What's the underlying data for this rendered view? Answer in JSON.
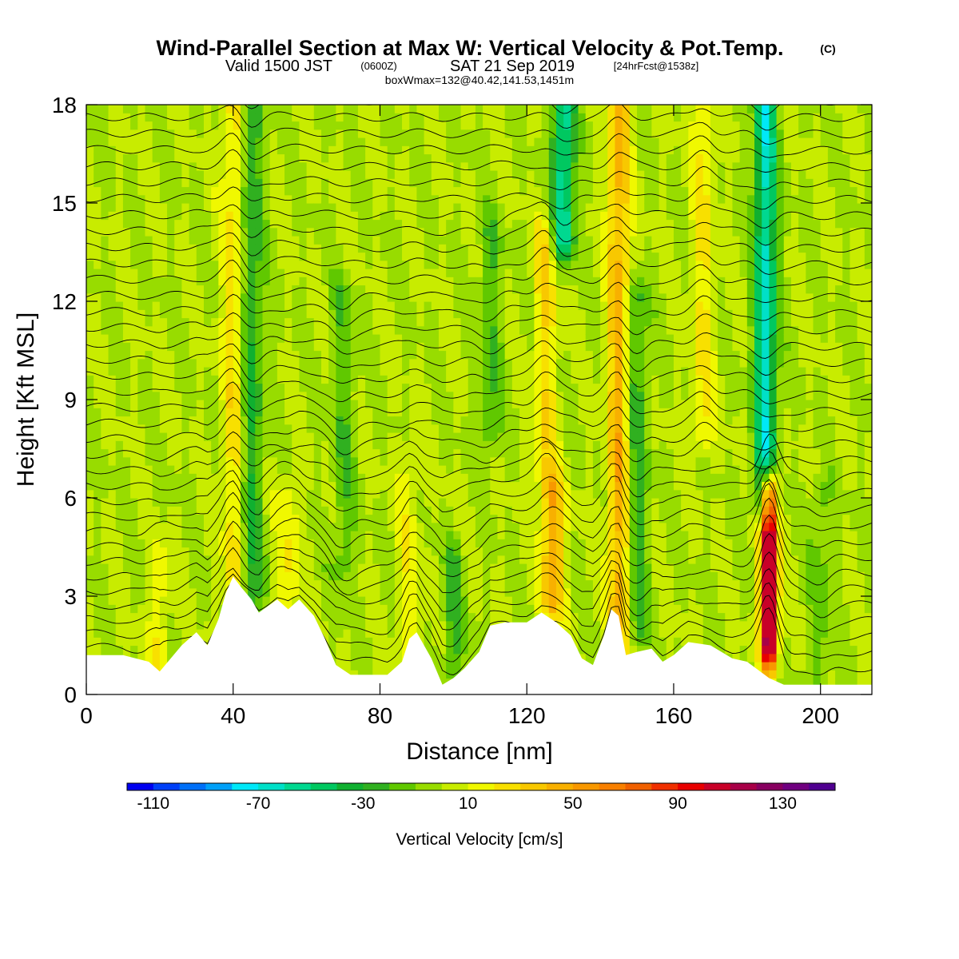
{
  "title": {
    "main": "Wind-Parallel Section at Max W: Vertical Velocity & Pot.Temp.",
    "copyright": "(C)",
    "valid_prefix": "Valid 1500 JST",
    "valid_utc": "(0600Z)",
    "valid_date": "SAT 21 Sep 2019",
    "forecast": "[24hrFcst@1538z]",
    "box_info": "boxWmax=132@40.42,141.53,1451m"
  },
  "colors": {
    "background": "#ffffff",
    "terrain": "#ffffff",
    "contour": "#000000"
  },
  "chart_data": {
    "type": "heatmap",
    "xlabel": "Distance [nm]",
    "ylabel": "Height [Kft MSL]",
    "xlim": [
      0,
      214
    ],
    "ylim": [
      0,
      18
    ],
    "x_ticks": [
      0,
      40,
      80,
      120,
      160,
      200
    ],
    "x_tick_labels": [
      "0",
      "40",
      "80",
      "120",
      "160",
      "200"
    ],
    "y_ticks": [
      0,
      3,
      6,
      9,
      12,
      15,
      18
    ],
    "y_tick_labels": [
      "0",
      "3",
      "6",
      "9",
      "12",
      "15",
      "18"
    ],
    "colorbar": {
      "title": "Vertical Velocity [cm/s]",
      "min": -120,
      "max": 150,
      "step": 10,
      "tick_values": [
        -110,
        -70,
        -30,
        10,
        50,
        90,
        130
      ],
      "tick_labels": [
        "-110",
        "-70",
        "-30",
        "10",
        "50",
        "90",
        "130"
      ],
      "colors": [
        "#0000f0",
        "#0040f8",
        "#0070f8",
        "#00a0f8",
        "#00e8f8",
        "#00e0c8",
        "#00d890",
        "#00c860",
        "#10b030",
        "#30b020",
        "#60c800",
        "#98dc00",
        "#c8ec00",
        "#f0f800",
        "#f8e000",
        "#f8c800",
        "#f8b000",
        "#f89800",
        "#f88000",
        "#f06000",
        "#f03000",
        "#e80000",
        "#c80028",
        "#a80048",
        "#880060",
        "#700080",
        "#500090"
      ]
    },
    "background_w": 0,
    "w_features": [
      {
        "x": 186,
        "z_bottom": 1.5,
        "z_top": 6.0,
        "w": 132
      },
      {
        "x": 185,
        "z_bottom": 6.0,
        "z_top": 18,
        "w": -65
      },
      {
        "x": 145,
        "z_bottom": 1.0,
        "z_top": 18,
        "w": 45
      },
      {
        "x": 130,
        "z_bottom": 14.0,
        "z_top": 18,
        "w": -60
      },
      {
        "x": 127,
        "z_bottom": 3.0,
        "z_top": 6.0,
        "w": 50
      },
      {
        "x": 40,
        "z_bottom": 3.5,
        "z_top": 18,
        "w": 25
      },
      {
        "x": 125,
        "z_bottom": 7.0,
        "z_top": 14.0,
        "w": 28
      },
      {
        "x": 168,
        "z_bottom": 8.0,
        "z_top": 18,
        "w": 22
      },
      {
        "x": 55,
        "z_bottom": 3.0,
        "z_top": 6.0,
        "w": 20
      },
      {
        "x": 45,
        "z_bottom": 3.0,
        "z_top": 18,
        "w": -30
      },
      {
        "x": 150,
        "z_bottom": 2.0,
        "z_top": 12.0,
        "w": -25
      },
      {
        "x": 110,
        "z_bottom": 8.0,
        "z_top": 14.0,
        "w": -20
      },
      {
        "x": 200,
        "z_bottom": 0.5,
        "z_top": 6.0,
        "w": -15
      },
      {
        "x": 88,
        "z_bottom": 1.0,
        "z_top": 7.0,
        "w": 16
      },
      {
        "x": 20,
        "z_bottom": 1.0,
        "z_top": 4.0,
        "w": 18
      },
      {
        "x": 70,
        "z_bottom": 4.0,
        "z_top": 12.0,
        "w": -18
      },
      {
        "x": 100,
        "z_bottom": 1.0,
        "z_top": 4.0,
        "w": -22
      }
    ],
    "terrain": [
      {
        "x": 0,
        "z": 1.2
      },
      {
        "x": 10,
        "z": 1.2
      },
      {
        "x": 17,
        "z": 1.0
      },
      {
        "x": 20,
        "z": 0.7
      },
      {
        "x": 26,
        "z": 1.5
      },
      {
        "x": 30,
        "z": 1.9
      },
      {
        "x": 33,
        "z": 1.5
      },
      {
        "x": 36,
        "z": 2.3
      },
      {
        "x": 38,
        "z": 3.1
      },
      {
        "x": 40,
        "z": 3.6
      },
      {
        "x": 42,
        "z": 3.3
      },
      {
        "x": 45,
        "z": 2.9
      },
      {
        "x": 47,
        "z": 2.5
      },
      {
        "x": 52,
        "z": 2.9
      },
      {
        "x": 55,
        "z": 2.6
      },
      {
        "x": 58,
        "z": 2.9
      },
      {
        "x": 62,
        "z": 2.4
      },
      {
        "x": 65,
        "z": 1.7
      },
      {
        "x": 68,
        "z": 0.9
      },
      {
        "x": 72,
        "z": 0.6
      },
      {
        "x": 82,
        "z": 0.6
      },
      {
        "x": 86,
        "z": 1.0
      },
      {
        "x": 88,
        "z": 1.7
      },
      {
        "x": 90,
        "z": 1.9
      },
      {
        "x": 94,
        "z": 1.1
      },
      {
        "x": 97,
        "z": 0.3
      },
      {
        "x": 100,
        "z": 0.5
      },
      {
        "x": 103,
        "z": 0.8
      },
      {
        "x": 107,
        "z": 1.3
      },
      {
        "x": 110,
        "z": 2.1
      },
      {
        "x": 114,
        "z": 2.2
      },
      {
        "x": 120,
        "z": 2.2
      },
      {
        "x": 124,
        "z": 2.5
      },
      {
        "x": 128,
        "z": 2.2
      },
      {
        "x": 132,
        "z": 1.8
      },
      {
        "x": 135,
        "z": 1.1
      },
      {
        "x": 138,
        "z": 0.9
      },
      {
        "x": 141,
        "z": 1.8
      },
      {
        "x": 143,
        "z": 2.6
      },
      {
        "x": 145,
        "z": 2.4
      },
      {
        "x": 147,
        "z": 1.2
      },
      {
        "x": 150,
        "z": 1.3
      },
      {
        "x": 154,
        "z": 1.4
      },
      {
        "x": 157,
        "z": 1.0
      },
      {
        "x": 160,
        "z": 1.2
      },
      {
        "x": 164,
        "z": 1.6
      },
      {
        "x": 170,
        "z": 1.5
      },
      {
        "x": 176,
        "z": 1.1
      },
      {
        "x": 180,
        "z": 1.0
      },
      {
        "x": 186,
        "z": 0.5
      },
      {
        "x": 190,
        "z": 0.3
      },
      {
        "x": 214,
        "z": 0.3
      }
    ],
    "isentrope_count": 36
  }
}
